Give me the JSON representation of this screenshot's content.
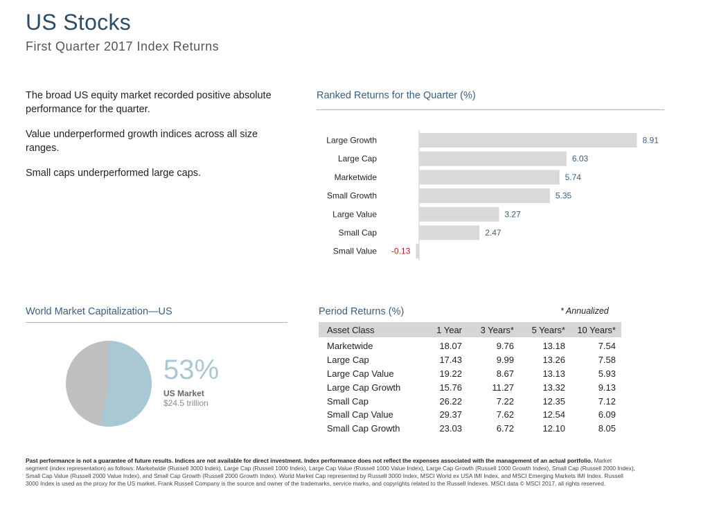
{
  "header": {
    "title": "US Stocks",
    "subtitle": "First Quarter 2017 Index Returns"
  },
  "bullets": [
    "The broad US equity market recorded positive absolute performance for the quarter.",
    "Value underperformed growth indices across all size ranges.",
    "Small caps underperformed large caps."
  ],
  "ranked": {
    "heading": "Ranked Returns for the Quarter (%)"
  },
  "chart_data": {
    "type": "bar",
    "orientation": "horizontal",
    "title": "Ranked Returns for the Quarter (%)",
    "categories": [
      "Large Growth",
      "Large Cap",
      "Marketwide",
      "Small Growth",
      "Large Value",
      "Small Cap",
      "Small Value"
    ],
    "values": [
      8.91,
      6.03,
      5.74,
      5.35,
      3.27,
      2.47,
      -0.13
    ],
    "labels": [
      "8.91",
      "6.03",
      "5.74",
      "5.35",
      "3.27",
      "2.47",
      "-0.13"
    ],
    "bar_color": "#d9d9d9",
    "positive_label_color": "#3a5f80",
    "negative_label_color": "#b01c1c"
  },
  "world_cap": {
    "heading": "World Market Capitalization—US",
    "percent_value": 53,
    "percent": "53%",
    "label": "US Market",
    "sublabel": "$24.5 trillion",
    "colors": {
      "us": "#a8c8d4",
      "rest": "#bfbfbf"
    }
  },
  "period_returns": {
    "heading": "Period Returns (%)",
    "note": "* Annualized",
    "columns": [
      "Asset Class",
      "1 Year",
      "3 Years*",
      "5 Years*",
      "10 Years*"
    ],
    "rows": [
      [
        "Marketwide",
        "18.07",
        "9.76",
        "13.18",
        "7.54"
      ],
      [
        "Large Cap",
        "17.43",
        "9.99",
        "13.26",
        "7.58"
      ],
      [
        "Large Cap Value",
        "19.22",
        "8.67",
        "13.13",
        "5.93"
      ],
      [
        "Large Cap Growth",
        "15.76",
        "11.27",
        "13.32",
        "9.13"
      ],
      [
        "Small Cap",
        "26.22",
        "7.22",
        "12.35",
        "7.12"
      ],
      [
        "Small Cap Value",
        "29.37",
        "7.62",
        "12.54",
        "6.09"
      ],
      [
        "Small Cap Growth",
        "23.03",
        "6.72",
        "12.10",
        "8.05"
      ]
    ]
  },
  "footnote": {
    "lead": "Past performance is not a guarantee of future results. Indices are not available for direct investment. Index performance does not reflect the expenses associated with the management of an actual portfolio.",
    "body": "Market segment (index representation) as follows: Marketwide (Russell 3000 Index), Large Cap (Russell 1000 Index), Large Cap Value (Russell 1000 Value Index), Large Cap Growth (Russell 1000 Growth Index), Small Cap (Russell 2000 Index), Small Cap Value (Russell 2000 Value Index), and Small Cap Growth (Russell 2000 Growth Index). World Market Cap represented by Russell 3000 Index, MSCI World ex USA IMI Index, and MSCI Emerging Markets IMI Index. Russell 3000 Index is used as the proxy for the US market. Frank Russell Company is the source and owner of the trademarks, service marks, and copyrights related to the Russell Indexes. MSCI data © MSCI 2017, all rights reserved."
  }
}
